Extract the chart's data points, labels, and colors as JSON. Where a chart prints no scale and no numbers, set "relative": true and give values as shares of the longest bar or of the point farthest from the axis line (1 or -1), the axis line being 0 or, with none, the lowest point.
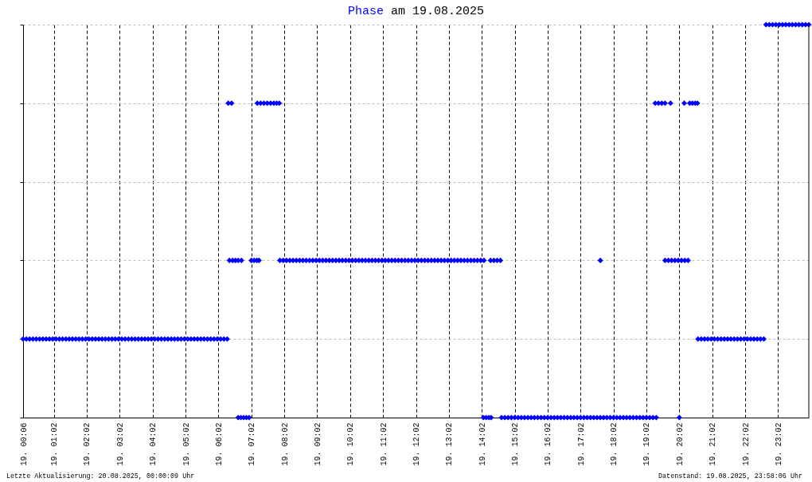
{
  "chart_data": {
    "type": "scatter",
    "title": "am 19.08.2025",
    "relative": true,
    "marker": "diamond",
    "grid": true,
    "annotations": [
      "Letzte Aktualisierung: 20.08.2025, 00:00:09 Uhr",
      "Datenstand: 19.08.2025, 23:58:06 Uhr"
    ],
    "xlim": [
      "2025-08-19T00:06",
      "2025-08-19T23:58"
    ],
    "xticks": [
      {
        "value": "2025-08-19T00:06",
        "label": "19. 00:06"
      },
      {
        "value": "2025-08-19T01:02",
        "label": "19. 01:02"
      },
      {
        "value": "2025-08-19T02:02",
        "label": "19. 02:02"
      },
      {
        "value": "2025-08-19T03:02",
        "label": "19. 03:02"
      },
      {
        "value": "2025-08-19T04:02",
        "label": "19. 04:02"
      },
      {
        "value": "2025-08-19T05:02",
        "label": "19. 05:02"
      },
      {
        "value": "2025-08-19T06:02",
        "label": "19. 06:02"
      },
      {
        "value": "2025-08-19T07:02",
        "label": "19. 07:02"
      },
      {
        "value": "2025-08-19T08:02",
        "label": "19. 08:02"
      },
      {
        "value": "2025-08-19T09:02",
        "label": "19. 09:02"
      },
      {
        "value": "2025-08-19T10:02",
        "label": "19. 10:02"
      },
      {
        "value": "2025-08-19T11:02",
        "label": "19. 11:02"
      },
      {
        "value": "2025-08-19T12:02",
        "label": "19. 12:02"
      },
      {
        "value": "2025-08-19T13:02",
        "label": "19. 13:02"
      },
      {
        "value": "2025-08-19T14:02",
        "label": "19. 14:02"
      },
      {
        "value": "2025-08-19T15:02",
        "label": "19. 15:02"
      },
      {
        "value": "2025-08-19T16:02",
        "label": "19. 16:02"
      },
      {
        "value": "2025-08-19T17:02",
        "label": "19. 17:02"
      },
      {
        "value": "2025-08-19T18:02",
        "label": "19. 18:02"
      },
      {
        "value": "2025-08-19T19:02",
        "label": "19. 19:02"
      },
      {
        "value": "2025-08-19T20:02",
        "label": "19. 20:02"
      },
      {
        "value": "2025-08-19T21:02",
        "label": "19. 21:02"
      },
      {
        "value": "2025-08-19T22:02",
        "label": "19. 22:02"
      },
      {
        "value": "2025-08-19T23:02",
        "label": "19. 23:02"
      }
    ],
    "series": [
      {
        "name": "Phase",
        "color": "#0000ff",
        "x": [
          "2025-08-19T00:06",
          "2025-08-19T00:12",
          "2025-08-19T00:18",
          "2025-08-19T00:24",
          "2025-08-19T00:30",
          "2025-08-19T00:36",
          "2025-08-19T00:42",
          "2025-08-19T00:48",
          "2025-08-19T00:54",
          "2025-08-19T01:00",
          "2025-08-19T01:06",
          "2025-08-19T01:12",
          "2025-08-19T01:18",
          "2025-08-19T01:24",
          "2025-08-19T01:30",
          "2025-08-19T01:36",
          "2025-08-19T01:42",
          "2025-08-19T01:48",
          "2025-08-19T01:54",
          "2025-08-19T02:00",
          "2025-08-19T02:06",
          "2025-08-19T02:12",
          "2025-08-19T02:18",
          "2025-08-19T02:24",
          "2025-08-19T02:30",
          "2025-08-19T02:36",
          "2025-08-19T02:42",
          "2025-08-19T02:48",
          "2025-08-19T02:54",
          "2025-08-19T03:00",
          "2025-08-19T03:06",
          "2025-08-19T03:12",
          "2025-08-19T03:18",
          "2025-08-19T03:24",
          "2025-08-19T03:30",
          "2025-08-19T03:36",
          "2025-08-19T03:42",
          "2025-08-19T03:48",
          "2025-08-19T03:54",
          "2025-08-19T04:00",
          "2025-08-19T04:06",
          "2025-08-19T04:12",
          "2025-08-19T04:18",
          "2025-08-19T04:24",
          "2025-08-19T04:30",
          "2025-08-19T04:36",
          "2025-08-19T04:42",
          "2025-08-19T04:48",
          "2025-08-19T04:54",
          "2025-08-19T05:00",
          "2025-08-19T05:06",
          "2025-08-19T05:12",
          "2025-08-19T05:18",
          "2025-08-19T05:24",
          "2025-08-19T05:30",
          "2025-08-19T05:36",
          "2025-08-19T05:42",
          "2025-08-19T05:48",
          "2025-08-19T05:54",
          "2025-08-19T06:00",
          "2025-08-19T06:06",
          "2025-08-19T06:12",
          "2025-08-19T06:18",
          "2025-08-19T06:20",
          "2025-08-19T06:26",
          "2025-08-19T06:22",
          "2025-08-19T06:28",
          "2025-08-19T06:33",
          "2025-08-19T06:38",
          "2025-08-19T06:44",
          "2025-08-19T06:38",
          "2025-08-19T06:43",
          "2025-08-19T06:48",
          "2025-08-19T06:53",
          "2025-08-19T06:58",
          "2025-08-19T07:02",
          "2025-08-19T07:07",
          "2025-08-19T07:12",
          "2025-08-19T07:16",
          "2025-08-19T07:13",
          "2025-08-19T07:19",
          "2025-08-19T07:25",
          "2025-08-19T07:31",
          "2025-08-19T07:37",
          "2025-08-19T07:43",
          "2025-08-19T07:48",
          "2025-08-19T07:53",
          "2025-08-19T07:54",
          "2025-08-19T08:00",
          "2025-08-19T08:06",
          "2025-08-19T08:12",
          "2025-08-19T08:18",
          "2025-08-19T08:24",
          "2025-08-19T08:30",
          "2025-08-19T08:36",
          "2025-08-19T08:42",
          "2025-08-19T08:48",
          "2025-08-19T08:54",
          "2025-08-19T09:00",
          "2025-08-19T09:06",
          "2025-08-19T09:12",
          "2025-08-19T09:18",
          "2025-08-19T09:24",
          "2025-08-19T09:30",
          "2025-08-19T09:36",
          "2025-08-19T09:42",
          "2025-08-19T09:48",
          "2025-08-19T09:54",
          "2025-08-19T10:00",
          "2025-08-19T10:06",
          "2025-08-19T10:12",
          "2025-08-19T10:18",
          "2025-08-19T10:24",
          "2025-08-19T10:30",
          "2025-08-19T10:36",
          "2025-08-19T10:42",
          "2025-08-19T10:48",
          "2025-08-19T10:54",
          "2025-08-19T11:00",
          "2025-08-19T11:06",
          "2025-08-19T11:12",
          "2025-08-19T11:18",
          "2025-08-19T11:24",
          "2025-08-19T11:30",
          "2025-08-19T11:36",
          "2025-08-19T11:42",
          "2025-08-19T11:48",
          "2025-08-19T11:54",
          "2025-08-19T12:00",
          "2025-08-19T12:06",
          "2025-08-19T12:12",
          "2025-08-19T12:18",
          "2025-08-19T12:24",
          "2025-08-19T12:30",
          "2025-08-19T12:36",
          "2025-08-19T12:42",
          "2025-08-19T12:48",
          "2025-08-19T12:54",
          "2025-08-19T13:00",
          "2025-08-19T13:06",
          "2025-08-19T13:12",
          "2025-08-19T13:18",
          "2025-08-19T13:24",
          "2025-08-19T13:30",
          "2025-08-19T13:36",
          "2025-08-19T13:42",
          "2025-08-19T13:48",
          "2025-08-19T13:54",
          "2025-08-19T14:00",
          "2025-08-19T14:06",
          "2025-08-19T14:05",
          "2025-08-19T14:10",
          "2025-08-19T14:15",
          "2025-08-19T14:19",
          "2025-08-19T14:18",
          "2025-08-19T14:24",
          "2025-08-19T14:30",
          "2025-08-19T14:36",
          "2025-08-19T14:38",
          "2025-08-19T14:44",
          "2025-08-19T14:50",
          "2025-08-19T14:56",
          "2025-08-19T15:02",
          "2025-08-19T15:08",
          "2025-08-19T15:14",
          "2025-08-19T15:20",
          "2025-08-19T15:26",
          "2025-08-19T15:32",
          "2025-08-19T15:38",
          "2025-08-19T15:44",
          "2025-08-19T15:50",
          "2025-08-19T15:56",
          "2025-08-19T16:02",
          "2025-08-19T16:08",
          "2025-08-19T16:14",
          "2025-08-19T16:20",
          "2025-08-19T16:26",
          "2025-08-19T16:32",
          "2025-08-19T16:38",
          "2025-08-19T16:44",
          "2025-08-19T16:50",
          "2025-08-19T16:56",
          "2025-08-19T17:02",
          "2025-08-19T17:08",
          "2025-08-19T17:14",
          "2025-08-19T17:20",
          "2025-08-19T17:26",
          "2025-08-19T17:32",
          "2025-08-19T17:38",
          "2025-08-19T17:44",
          "2025-08-19T17:50",
          "2025-08-19T17:56",
          "2025-08-19T18:02",
          "2025-08-19T18:08",
          "2025-08-19T18:14",
          "2025-08-19T18:20",
          "2025-08-19T18:26",
          "2025-08-19T18:32",
          "2025-08-19T18:38",
          "2025-08-19T18:44",
          "2025-08-19T18:50",
          "2025-08-19T18:56",
          "2025-08-19T19:02",
          "2025-08-19T19:08",
          "2025-08-19T19:14",
          "2025-08-19T19:20",
          "2025-08-19T17:38",
          "2025-08-19T19:18",
          "2025-08-19T19:24",
          "2025-08-19T19:30",
          "2025-08-19T19:36",
          "2025-08-19T19:46",
          "2025-08-19T19:36",
          "2025-08-19T19:42",
          "2025-08-19T19:48",
          "2025-08-19T19:54",
          "2025-08-19T20:00",
          "2025-08-19T20:06",
          "2025-08-19T20:12",
          "2025-08-19T20:18",
          "2025-08-19T20:02",
          "2025-08-19T20:11",
          "2025-08-19T20:21",
          "2025-08-19T20:26",
          "2025-08-19T20:31",
          "2025-08-19T20:35",
          "2025-08-19T20:36",
          "2025-08-19T20:42",
          "2025-08-19T20:48",
          "2025-08-19T20:54",
          "2025-08-19T21:00",
          "2025-08-19T21:06",
          "2025-08-19T21:12",
          "2025-08-19T21:18",
          "2025-08-19T21:24",
          "2025-08-19T21:30",
          "2025-08-19T21:36",
          "2025-08-19T21:42",
          "2025-08-19T21:48",
          "2025-08-19T21:54",
          "2025-08-19T22:00",
          "2025-08-19T22:06",
          "2025-08-19T22:12",
          "2025-08-19T22:18",
          "2025-08-19T22:24",
          "2025-08-19T22:30",
          "2025-08-19T22:36",
          "2025-08-19T22:40",
          "2025-08-19T22:46",
          "2025-08-19T22:52",
          "2025-08-19T22:58",
          "2025-08-19T23:04",
          "2025-08-19T23:10",
          "2025-08-19T23:16",
          "2025-08-19T23:22",
          "2025-08-19T23:28",
          "2025-08-19T23:34",
          "2025-08-19T23:40",
          "2025-08-19T23:46",
          "2025-08-19T23:52",
          "2025-08-19T23:58"
        ],
        "values": [
          0.2,
          0.2,
          0.2,
          0.2,
          0.2,
          0.2,
          0.2,
          0.2,
          0.2,
          0.2,
          0.2,
          0.2,
          0.2,
          0.2,
          0.2,
          0.2,
          0.2,
          0.2,
          0.2,
          0.2,
          0.2,
          0.2,
          0.2,
          0.2,
          0.2,
          0.2,
          0.2,
          0.2,
          0.2,
          0.2,
          0.2,
          0.2,
          0.2,
          0.2,
          0.2,
          0.2,
          0.2,
          0.2,
          0.2,
          0.2,
          0.2,
          0.2,
          0.2,
          0.2,
          0.2,
          0.2,
          0.2,
          0.2,
          0.2,
          0.2,
          0.2,
          0.2,
          0.2,
          0.2,
          0.2,
          0.2,
          0.2,
          0.2,
          0.2,
          0.2,
          0.2,
          0.2,
          0.2,
          0.8,
          0.8,
          0.4,
          0.4,
          0.4,
          0.4,
          0.4,
          0,
          0,
          0,
          0,
          0,
          0.4,
          0.4,
          0.4,
          0.4,
          0.8,
          0.8,
          0.8,
          0.8,
          0.8,
          0.8,
          0.8,
          0.8,
          0.4,
          0.4,
          0.4,
          0.4,
          0.4,
          0.4,
          0.4,
          0.4,
          0.4,
          0.4,
          0.4,
          0.4,
          0.4,
          0.4,
          0.4,
          0.4,
          0.4,
          0.4,
          0.4,
          0.4,
          0.4,
          0.4,
          0.4,
          0.4,
          0.4,
          0.4,
          0.4,
          0.4,
          0.4,
          0.4,
          0.4,
          0.4,
          0.4,
          0.4,
          0.4,
          0.4,
          0.4,
          0.4,
          0.4,
          0.4,
          0.4,
          0.4,
          0.4,
          0.4,
          0.4,
          0.4,
          0.4,
          0.4,
          0.4,
          0.4,
          0.4,
          0.4,
          0.4,
          0.4,
          0.4,
          0.4,
          0.4,
          0.4,
          0.4,
          0.4,
          0.4,
          0.4,
          0.4,
          0,
          0,
          0,
          0,
          0.4,
          0.4,
          0.4,
          0.4,
          0,
          0,
          0,
          0,
          0,
          0,
          0,
          0,
          0,
          0,
          0,
          0,
          0,
          0,
          0,
          0,
          0,
          0,
          0,
          0,
          0,
          0,
          0,
          0,
          0,
          0,
          0,
          0,
          0,
          0,
          0,
          0,
          0,
          0,
          0,
          0,
          0,
          0,
          0,
          0,
          0,
          0,
          0,
          0,
          0,
          0,
          0,
          0,
          0.4,
          0.8,
          0.8,
          0.8,
          0.8,
          0.8,
          0.4,
          0.4,
          0.4,
          0.4,
          0.4,
          0.4,
          0.4,
          0.4,
          0,
          0.8,
          0.8,
          0.8,
          0.8,
          0.8,
          0.2,
          0.2,
          0.2,
          0.2,
          0.2,
          0.2,
          0.2,
          0.2,
          0.2,
          0.2,
          0.2,
          0.2,
          0.2,
          0.2,
          0.2,
          0.2,
          0.2,
          0.2,
          0.2,
          0.2,
          0.2,
          1,
          1,
          1,
          1,
          1,
          1,
          1,
          1,
          1,
          1,
          1,
          1,
          1,
          1
        ]
      }
    ]
  }
}
